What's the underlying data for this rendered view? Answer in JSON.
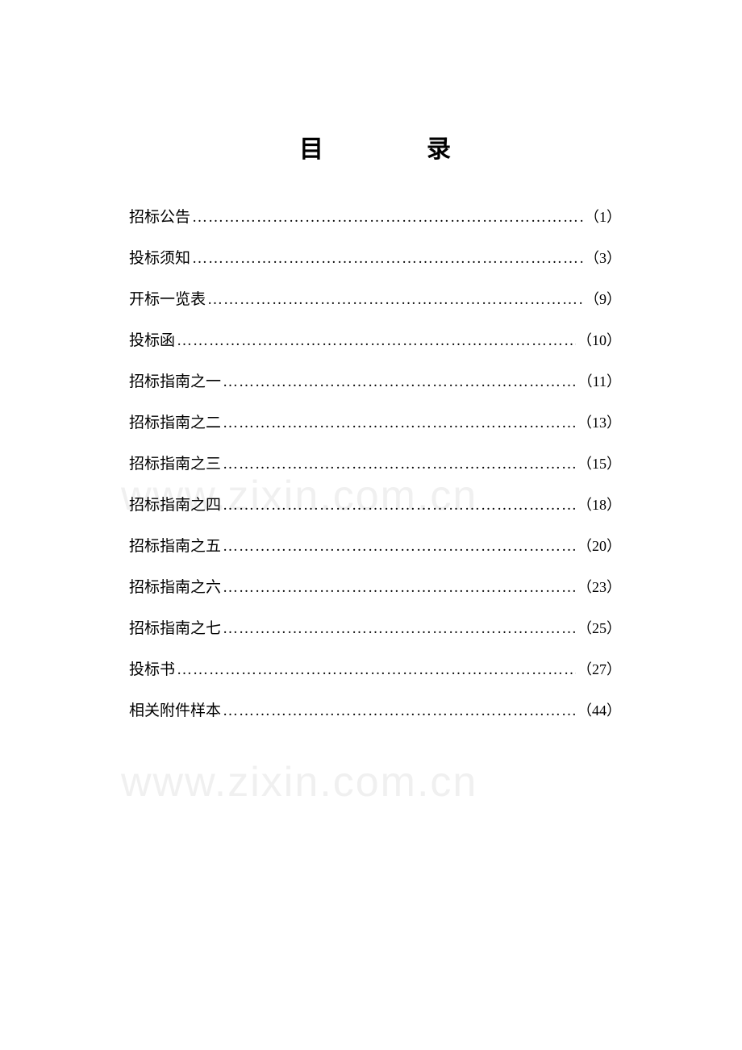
{
  "title": {
    "char1": "目",
    "char2": "录"
  },
  "toc": {
    "items": [
      {
        "label": "招标公告",
        "page": "（1）"
      },
      {
        "label": "投标须知",
        "page": "（3）"
      },
      {
        "label": "开标一览表",
        "page": "（9）"
      },
      {
        "label": "投标函",
        "page": "（10）"
      },
      {
        "label": "招标指南之一",
        "page": "（11）"
      },
      {
        "label": "招标指南之二",
        "page": "（13）"
      },
      {
        "label": "招标指南之三",
        "page": "（15）"
      },
      {
        "label": "招标指南之四",
        "page": "（18）"
      },
      {
        "label": "招标指南之五",
        "page": "（20）"
      },
      {
        "label": "招标指南之六",
        "page": "（23）"
      },
      {
        "label": "招标指南之七",
        "page": "（25）"
      },
      {
        "label": "投标书 ",
        "page": "（27）"
      },
      {
        "label": "相关附件样本 ",
        "page": " （44）"
      }
    ]
  },
  "watermark": {
    "text": "www.zixin.com.cn"
  },
  "dots": "……………………………………………………………………………………………………"
}
